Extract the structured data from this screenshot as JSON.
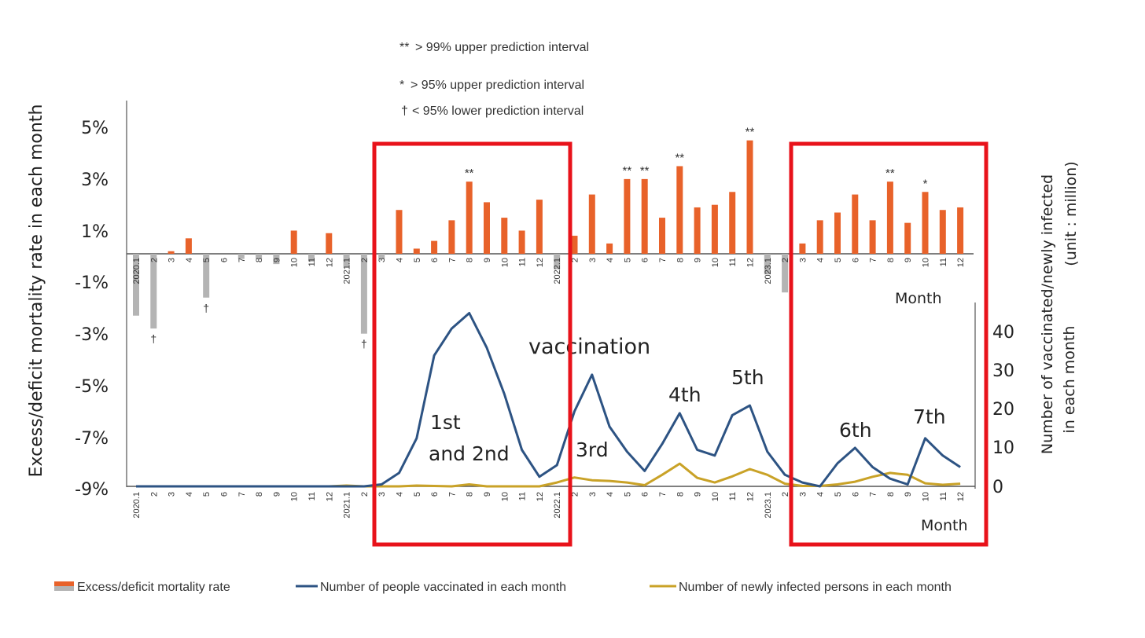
{
  "chart_data": {
    "type": "bar+line",
    "title": "",
    "notes": {
      "double_dagger": "> 99% upper prediction interval",
      "asterisk": "> 95% upper prediction interval",
      "dagger": "< 95% lower prediction interval"
    },
    "marker_glyphs": {
      "double_star": "**",
      "star": "*",
      "dagger": "†"
    },
    "left_axis": {
      "label": "Excess/deficit mortality rate in each month",
      "ticks": [
        "5%",
        "3%",
        "1%",
        "-1%",
        "-3%",
        "-5%",
        "-7%",
        "-9%"
      ],
      "tick_values": [
        5,
        3,
        1,
        -1,
        -3,
        -5,
        -7,
        -9
      ],
      "ylim": [
        -9,
        5.5
      ]
    },
    "right_axis": {
      "label_line1": "Number of vaccinated/newly infected",
      "label_line2": "in each month",
      "unit": "(unit : million)",
      "ticks": [
        "40",
        "30",
        "20",
        "10",
        "0"
      ],
      "tick_values": [
        40,
        30,
        20,
        10,
        0
      ],
      "ylim": [
        0,
        47
      ]
    },
    "month_labels": [
      "2020.1",
      "2",
      "3",
      "4",
      "5",
      "6",
      "7",
      "8",
      "9",
      "10",
      "11",
      "12",
      "2021.1",
      "2",
      "3",
      "4",
      "5",
      "6",
      "7",
      "8",
      "9",
      "10",
      "11",
      "12",
      "2022.1",
      "2",
      "3",
      "4",
      "5",
      "6",
      "7",
      "8",
      "9",
      "10",
      "11",
      "12",
      "2023.1",
      "2",
      "3",
      "4",
      "5",
      "6",
      "7",
      "8",
      "9",
      "10",
      "11",
      "12"
    ],
    "xlabel_upper": "Month",
    "xlabel_lower": "Month",
    "excess_mortality_pct": [
      -2.4,
      -2.9,
      0.1,
      0.6,
      -1.7,
      0,
      -0.2,
      -0.2,
      -0.4,
      0.9,
      -0.3,
      0.8,
      -0.5,
      -3.1,
      -0.2,
      1.7,
      0.2,
      0.5,
      1.3,
      2.8,
      2.0,
      1.4,
      0.9,
      2.1,
      -0.6,
      0.7,
      2.3,
      0.4,
      2.9,
      2.9,
      1.4,
      3.4,
      1.8,
      1.9,
      2.4,
      4.4,
      -0.8,
      -1.5,
      0.4,
      1.3,
      1.6,
      2.3,
      1.3,
      2.8,
      1.2,
      2.4,
      1.7,
      1.8
    ],
    "significance_markers": [
      "",
      "dagger",
      "",
      "",
      "dagger",
      "",
      "",
      "",
      "",
      "",
      "",
      "",
      "",
      "dagger",
      "",
      "",
      "",
      "",
      "",
      "double_star",
      "",
      "",
      "",
      "",
      "",
      "",
      "",
      "",
      "double_star",
      "double_star",
      "",
      "double_star",
      "",
      "",
      "",
      "double_star",
      "",
      "",
      "",
      "",
      "",
      "",
      "",
      "double_star",
      "",
      "star",
      "",
      ""
    ],
    "vaccinated_millions": [
      0,
      0,
      0,
      0,
      0,
      0,
      0,
      0,
      0,
      0,
      0,
      0,
      0,
      0,
      0.5,
      3.5,
      12.5,
      34,
      41,
      45,
      36,
      24,
      9.5,
      2.5,
      5.5,
      19.5,
      29,
      15.5,
      9,
      4,
      11,
      19,
      9.5,
      8,
      18.5,
      21,
      9,
      3,
      1,
      0,
      6,
      10,
      5,
      2,
      0.5,
      12.5,
      8,
      5
    ],
    "newly_infected_millions": [
      0,
      0,
      0,
      0,
      0,
      0,
      0,
      0,
      0,
      0,
      0,
      0,
      0.2,
      0,
      0,
      0,
      0.2,
      0.1,
      0,
      0.5,
      0,
      0,
      0,
      0,
      1,
      2.3,
      1.6,
      1.4,
      1,
      0.3,
      3,
      5.9,
      2.2,
      1,
      2.6,
      4.5,
      3,
      0.7,
      0.1,
      0.1,
      0.5,
      1.2,
      2.5,
      3.5,
      3,
      0.8,
      0.4,
      0.7
    ],
    "annotations": {
      "vaccination": "vaccination",
      "dose_1st": "1st",
      "dose_and_2nd": "and 2nd",
      "dose_3rd": "3rd",
      "dose_4th": "4th",
      "dose_5th": "5th",
      "dose_6th": "6th",
      "dose_7th": "7th"
    },
    "legend": {
      "excess": "Excess/deficit mortality rate",
      "vaccinated": "Number of people vaccinated in each month",
      "infected": "Number of newly infected persons in each month"
    },
    "colors": {
      "positive_bar": "#e8622a",
      "negative_bar": "#b4b4b4",
      "vaccinated_line": "#2d5383",
      "infected_line": "#c9a227",
      "highlight_box": "#e8121a",
      "axis": "#555555"
    }
  }
}
